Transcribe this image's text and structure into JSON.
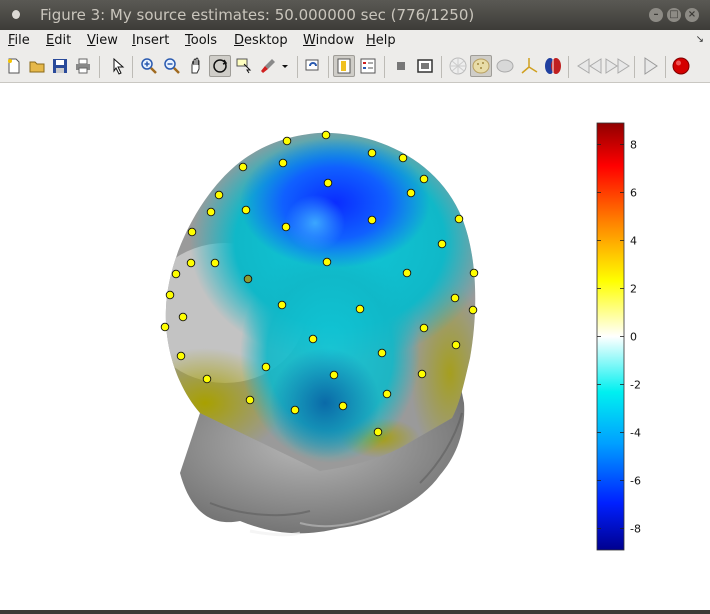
{
  "window": {
    "title": "Figure 3: My source estimates:  50.000000 sec  (776/1250)",
    "controls": {
      "minimize": "–",
      "maximize": "□",
      "close": "×"
    }
  },
  "menu": [
    {
      "pre": "",
      "u": "F",
      "post": "ile"
    },
    {
      "pre": "",
      "u": "E",
      "post": "dit"
    },
    {
      "pre": "",
      "u": "V",
      "post": "iew"
    },
    {
      "pre": "",
      "u": "I",
      "post": "nsert"
    },
    {
      "pre": "",
      "u": "T",
      "post": "ools"
    },
    {
      "pre": "",
      "u": "D",
      "post": "esktop"
    },
    {
      "pre": "",
      "u": "W",
      "post": "indow"
    },
    {
      "pre": "",
      "u": "H",
      "post": "elp"
    }
  ],
  "toolbar": {
    "icons": [
      "new-figure-icon",
      "open-file-icon",
      "save-icon",
      "print-icon",
      "pointer-icon",
      "zoom-in-icon",
      "zoom-out-icon",
      "pan-hand-icon",
      "rotate-3d-icon",
      "data-cursor-icon",
      "brush-icon",
      "brush-dropdown-icon",
      "link-plot-icon",
      "colorbar-icon",
      "legend-icon",
      "hide-plot-tools-icon",
      "show-plot-tools-icon",
      "sensor-cap-icon",
      "scalp-icon",
      "cortex-smooth-icon",
      "axes-3d-icon",
      "brain-hemispheres-icon",
      "previous-frame-icon",
      "next-frame-icon",
      "play-icon",
      "record-icon"
    ]
  },
  "colors": {
    "colorbar": [
      "#00008f",
      "#0020ff",
      "#00a0ff",
      "#00f0f0",
      "#ffffff",
      "#ffff00",
      "#ff8000",
      "#ff0000",
      "#900000"
    ],
    "electrode": "#ffff00",
    "record": "#d40000"
  },
  "colorbar": {
    "ticks": [
      "8",
      "6",
      "4",
      "2",
      "0",
      "-2",
      "-4",
      "-6",
      "-8"
    ],
    "range": [
      -8.9,
      8.9
    ]
  }
}
